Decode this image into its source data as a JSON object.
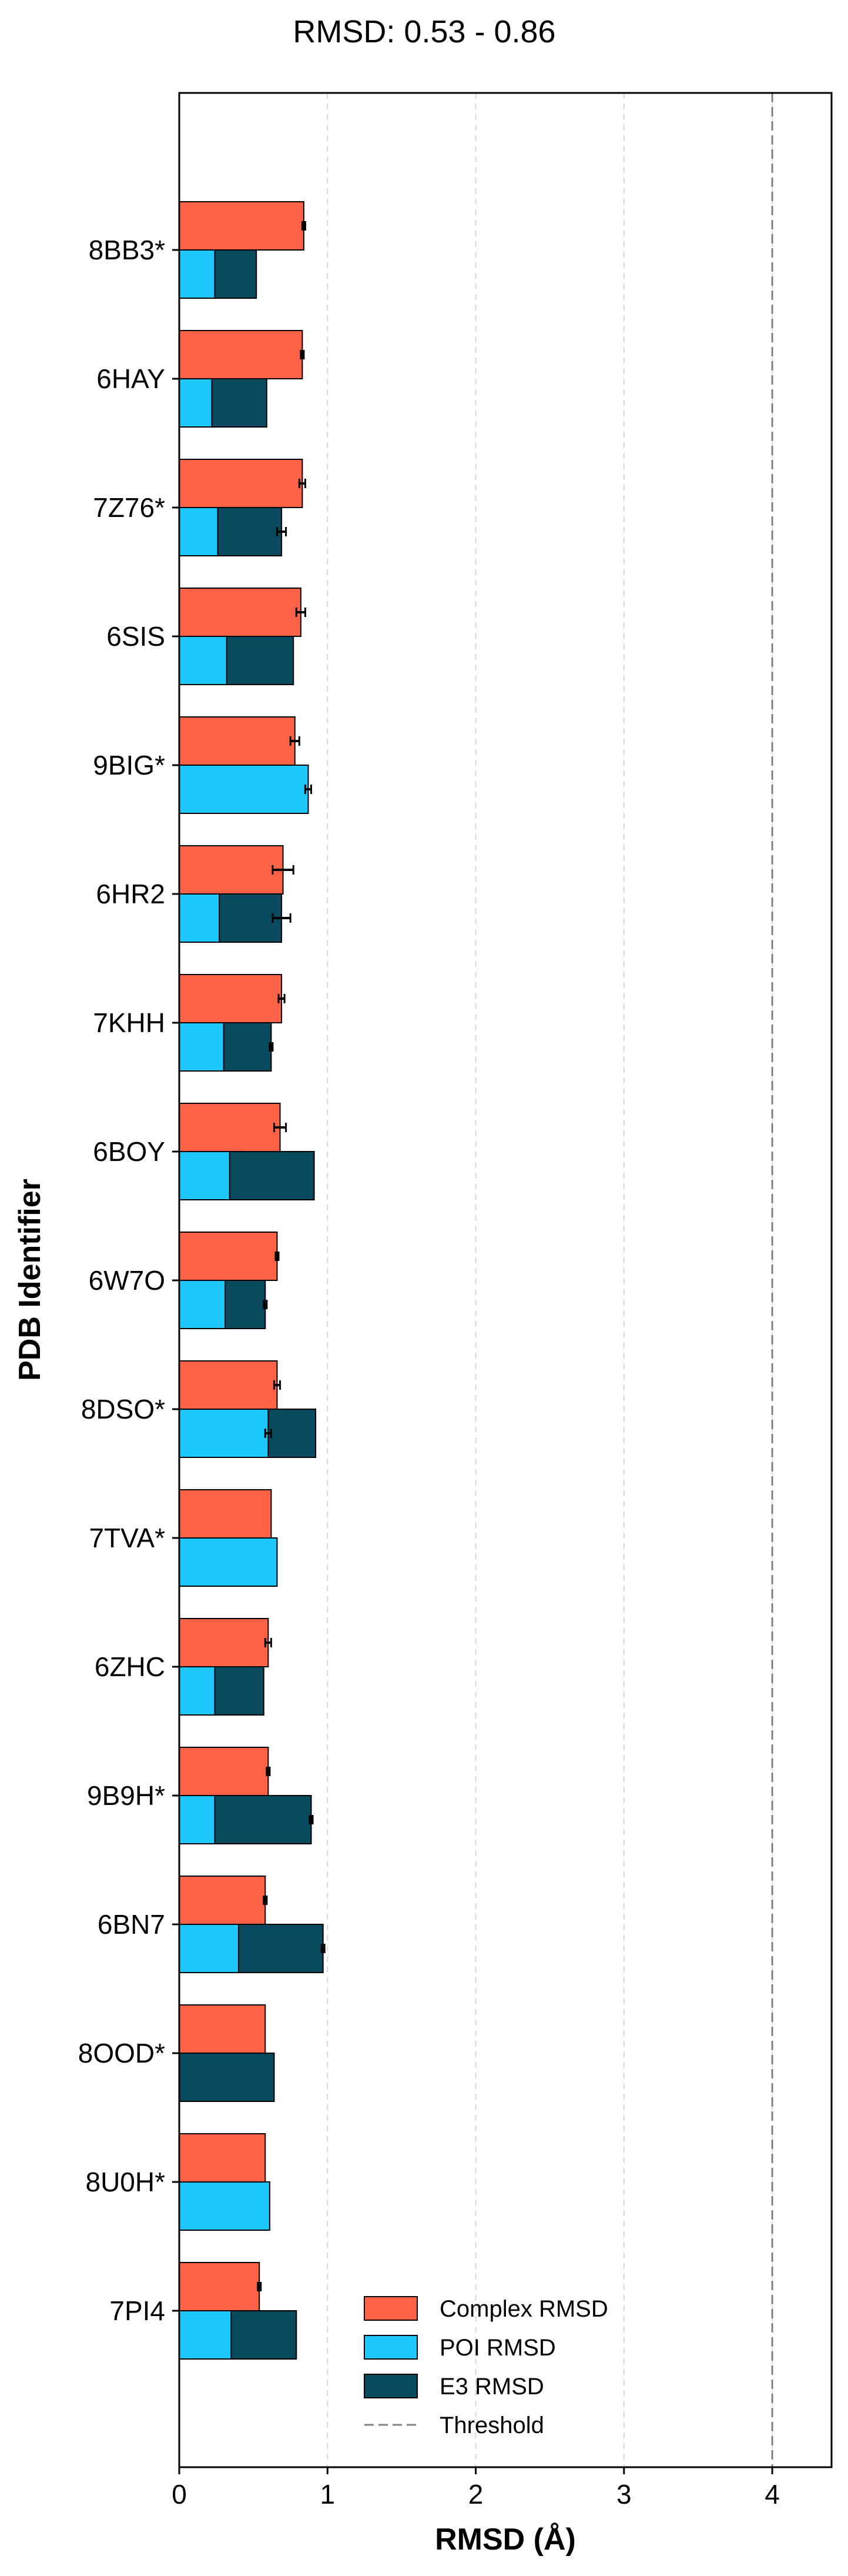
{
  "chart_data": {
    "type": "bar",
    "orientation": "horizontal",
    "title": "RMSD: 0.53 - 0.86",
    "xlabel": "RMSD (Å)",
    "ylabel": "PDB Identifier",
    "xlim": [
      0,
      4.4
    ],
    "xticks": [
      "0",
      "1",
      "2",
      "3",
      "4"
    ],
    "grid": "vertical dashed",
    "threshold": 4.0,
    "legend_position": "bottom-right",
    "legend": [
      "Complex RMSD",
      "POI RMSD",
      "E3 RMSD",
      "Threshold"
    ],
    "colors": {
      "complex": "#FF6347",
      "poi": "#1EC8FF",
      "e3": "#0A4A5E",
      "threshold": "#808080"
    },
    "categories": [
      "8BB3*",
      "6HAY",
      "7Z76*",
      "6SIS",
      "9BIG*",
      "6HR2",
      "7KHH",
      "6BOY",
      "6W7O",
      "8DSO*",
      "7TVA*",
      "6ZHC",
      "9B9H*",
      "6BN7",
      "8OOD*",
      "8U0H*",
      "7PI4"
    ],
    "series": [
      {
        "name": "Complex RMSD",
        "values": [
          0.84,
          0.83,
          0.83,
          0.82,
          0.78,
          0.7,
          0.69,
          0.68,
          0.66,
          0.66,
          0.62,
          0.6,
          0.6,
          0.58,
          0.58,
          0.58,
          0.54
        ],
        "errors": [
          0.01,
          0.01,
          0.02,
          0.03,
          0.03,
          0.07,
          0.02,
          0.04,
          0.01,
          0.02,
          0.0,
          0.02,
          0.01,
          0.01,
          0.0,
          0.0,
          0.01
        ]
      },
      {
        "name": "POI RMSD",
        "values": [
          0.24,
          0.22,
          0.26,
          0.32,
          0.87,
          0.27,
          0.3,
          0.34,
          0.31,
          0.6,
          0.66,
          0.24,
          0.24,
          0.4,
          0.0,
          0.61,
          0.35
        ],
        "errors": [
          0.0,
          0.0,
          0.0,
          0.0,
          0.02,
          0.0,
          0.0,
          0.0,
          0.0,
          0.02,
          0.0,
          0.0,
          0.0,
          0.0,
          0.0,
          0.0,
          0.0
        ]
      },
      {
        "name": "E3 RMSD",
        "values": [
          0.52,
          0.59,
          0.69,
          0.77,
          0.0,
          0.69,
          0.62,
          0.91,
          0.58,
          0.92,
          0.0,
          0.57,
          0.89,
          0.97,
          0.64,
          0.0,
          0.79
        ],
        "errors": [
          0.0,
          0.0,
          0.03,
          0.0,
          0.0,
          0.06,
          0.01,
          0.0,
          0.01,
          0.0,
          0.0,
          0.0,
          0.01,
          0.01,
          0.0,
          0.0,
          0.0
        ]
      }
    ]
  }
}
